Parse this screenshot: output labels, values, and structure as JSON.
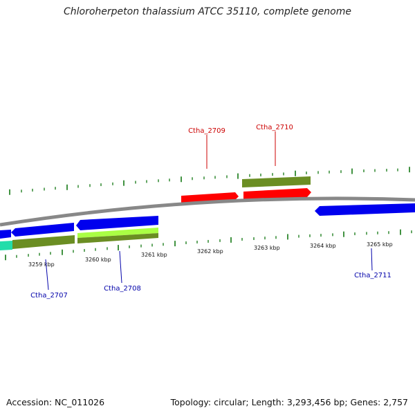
{
  "title": "Chloroherpeton thalassium ATCC 35110, complete genome",
  "footer": {
    "accession": "Accession: NC_011026",
    "stats": "Topology: circular; Length: 3,293,456 bp; Genes: 2,757"
  },
  "scale_labels": [
    "3259 kbp",
    "3260 kbp",
    "3261 kbp",
    "3262 kbp",
    "3263 kbp",
    "3264 kbp",
    "3265 kbp"
  ],
  "gene_labels": {
    "forward": [
      "Ctha_2709",
      "Ctha_2710"
    ],
    "reverse": [
      "Ctha_2707",
      "Ctha_2708",
      "Ctha_2711"
    ]
  },
  "colors": {
    "forward_label": "#cc0000",
    "reverse_label": "#0000aa",
    "forward_cds": "#ff0000",
    "reverse_cds": "#0000ee",
    "gene_feature": "#6b8e23",
    "rna_feature": "#aaff44",
    "misc_feature": "#22ddaa",
    "backbone": "#888888",
    "tick": "#117711"
  },
  "tracks": [
    "forward-cds",
    "forward-gene",
    "backbone",
    "reverse-cds",
    "reverse-gene"
  ]
}
